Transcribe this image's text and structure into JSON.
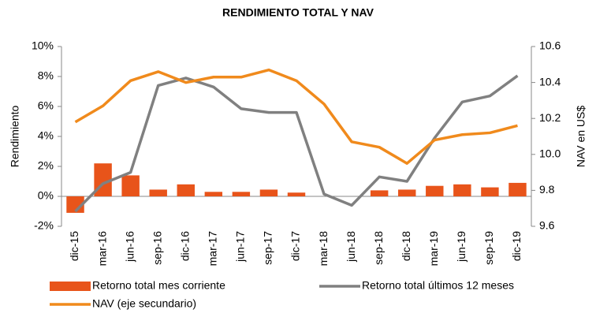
{
  "chart_data": {
    "type": "bar",
    "title": "RENDIMIENTO TOTAL Y NAV",
    "ylabel": "Rendimiento",
    "y2label": "NAV en US$",
    "categories": [
      "dic-15",
      "mar-16",
      "jun-16",
      "sep-16",
      "dic-16",
      "mar-17",
      "jun-17",
      "sep-17",
      "dic-17",
      "mar-18",
      "jun-18",
      "sep-18",
      "dic-18",
      "mar-19",
      "jun-19",
      "sep-19",
      "dic-19"
    ],
    "series": [
      {
        "name": "Retorno total mes corriente",
        "type": "bar",
        "color": "#e8541a",
        "values": [
          -1.1,
          2.2,
          1.4,
          0.45,
          0.8,
          0.3,
          0.3,
          0.45,
          0.25,
          0,
          0,
          0.4,
          0.45,
          0.7,
          0.8,
          0.6,
          0.9
        ]
      },
      {
        "name": "Retorno total últimos 12 meses",
        "type": "line",
        "color": "#808080",
        "values": [
          -1.0,
          0.85,
          1.6,
          7.4,
          7.9,
          7.3,
          5.85,
          5.6,
          5.6,
          0.15,
          -0.6,
          1.3,
          1.0,
          3.9,
          6.3,
          6.7,
          8.05
        ]
      },
      {
        "name": "NAV (eje secundario)",
        "type": "line",
        "axis": "y2",
        "color": "#f08a1c",
        "values": [
          10.18,
          10.27,
          10.41,
          10.46,
          10.4,
          10.43,
          10.43,
          10.47,
          10.41,
          10.28,
          10.07,
          10.04,
          9.95,
          10.08,
          10.11,
          10.12,
          10.16
        ]
      }
    ],
    "ylim": [
      -2,
      10
    ],
    "yticks": [
      {
        "value": -2,
        "label": "-2%"
      },
      {
        "value": 0,
        "label": "0%"
      },
      {
        "value": 2,
        "label": "2%"
      },
      {
        "value": 4,
        "label": "4%"
      },
      {
        "value": 6,
        "label": "6%"
      },
      {
        "value": 8,
        "label": "8%"
      },
      {
        "value": 10,
        "label": "10%"
      }
    ],
    "y2lim": [
      9.6,
      10.6
    ],
    "y2ticks": [
      9.6,
      9.8,
      {
        "value": 10.0,
        "label": "10.0"
      },
      10.2,
      10.4,
      10.6
    ],
    "grid": false
  }
}
